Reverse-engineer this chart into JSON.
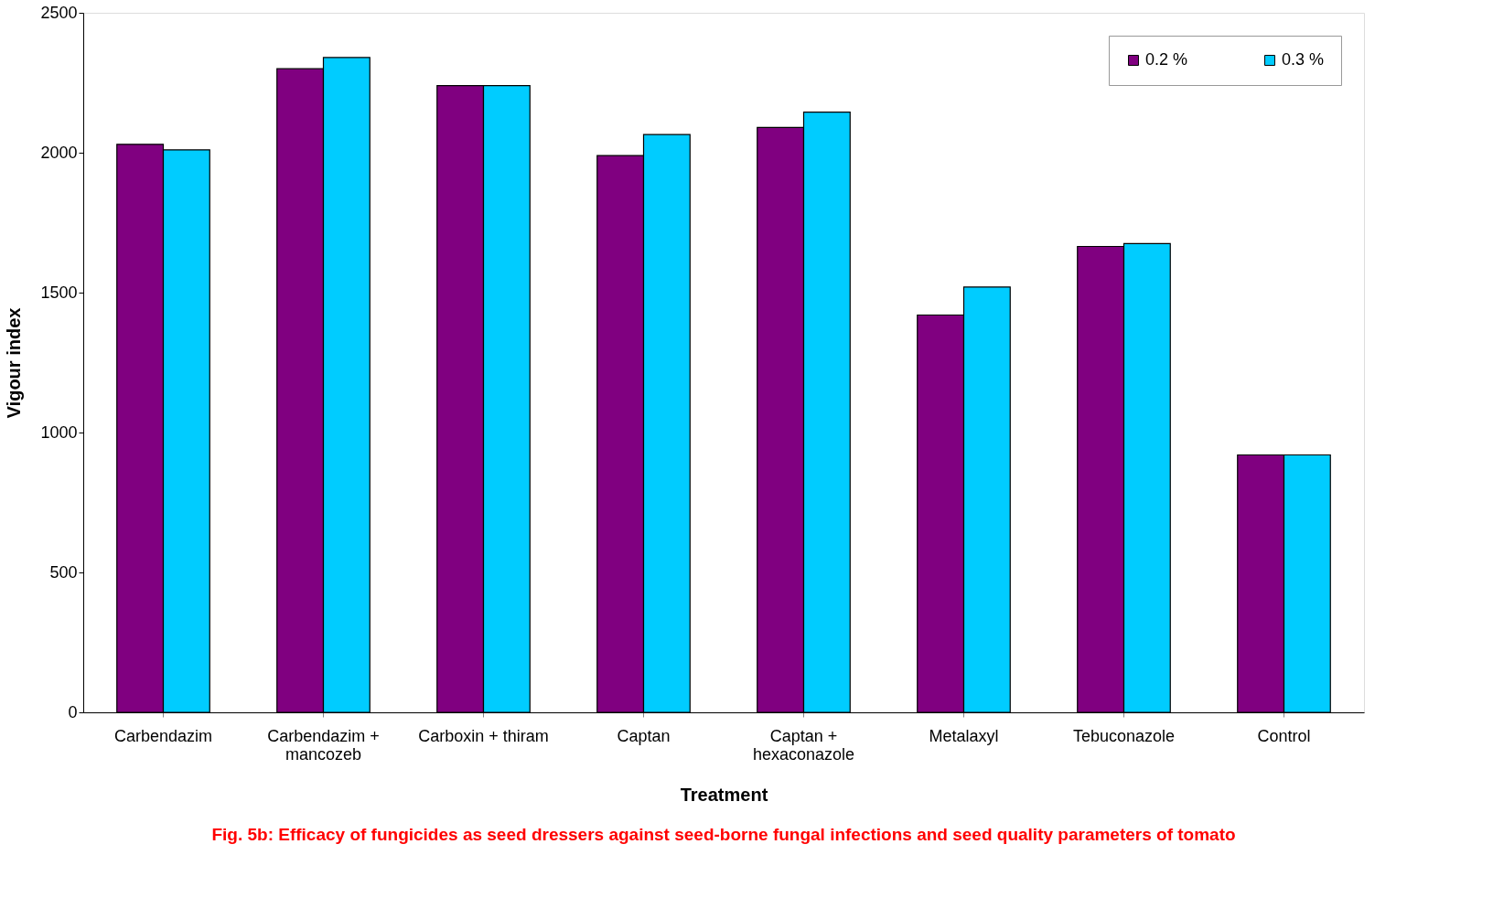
{
  "chart_data": {
    "type": "bar",
    "xlabel": "Treatment",
    "ylabel": "Vigour index",
    "categories": [
      "Carbendazim",
      "Carbendazim + mancozeb",
      "Carboxin + thiram",
      "Captan",
      "Captan + hexaconazole",
      "Metalaxyl",
      "Tebuconazole",
      "Control"
    ],
    "series": [
      {
        "name": "0.2 %",
        "color": "#800080",
        "values": [
          2030,
          2300,
          2240,
          1990,
          2090,
          1420,
          1665,
          920
        ]
      },
      {
        "name": "0.3 %",
        "color": "#00ccff",
        "values": [
          2010,
          2340,
          2240,
          2065,
          2145,
          1520,
          1675,
          920
        ]
      }
    ],
    "ylim": [
      0,
      2500
    ],
    "yticks": [
      0,
      500,
      1000,
      1500,
      2000,
      2500
    ],
    "grid": false,
    "legend": "top right",
    "annotations": [
      "Fig. 5b: Efficacy of fungicides as seed dressers against seed-borne fungal infections and seed quality parameters of tomato"
    ]
  }
}
